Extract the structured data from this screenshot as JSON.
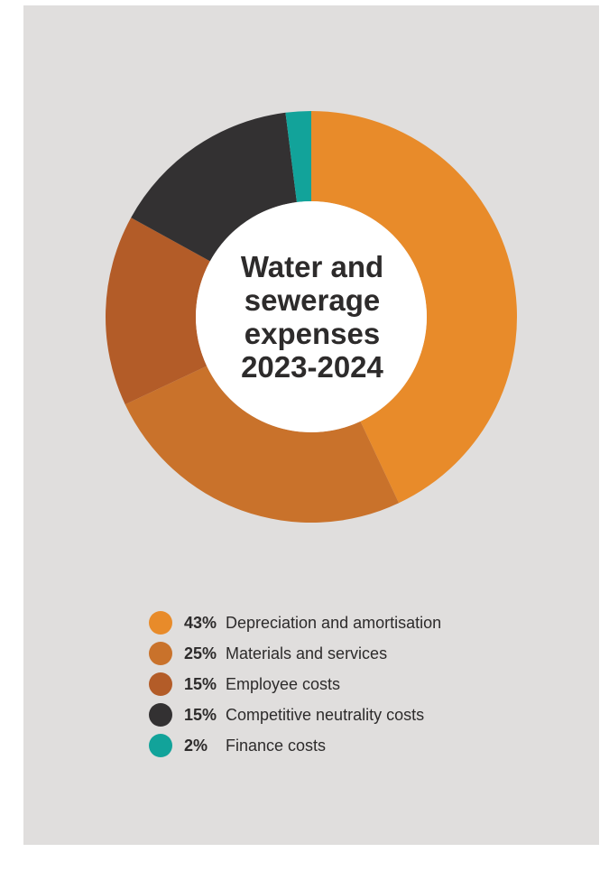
{
  "chart_data": {
    "type": "pie",
    "title_lines": [
      "Water and",
      "sewerage",
      "expenses",
      "2023-2024"
    ],
    "slices": [
      {
        "label": "Depreciation and amortisation",
        "percent_label": "43%",
        "value": 43,
        "color": "#e88b2a"
      },
      {
        "label": "Materials and services",
        "percent_label": "25%",
        "value": 25,
        "color": "#c9722b"
      },
      {
        "label": "Employee costs",
        "percent_label": "15%",
        "value": 15,
        "color": "#b35c28"
      },
      {
        "label": "Competitive neutrality costs",
        "percent_label": "15%",
        "value": 15,
        "color": "#333132"
      },
      {
        "label": "Finance costs",
        "percent_label": "2%",
        "value": 2,
        "color": "#12a39a"
      }
    ],
    "legend_position": "bottom"
  },
  "colors": {
    "background": "#e0dedd",
    "center": "#ffffff",
    "text": "#2d2b2b"
  }
}
